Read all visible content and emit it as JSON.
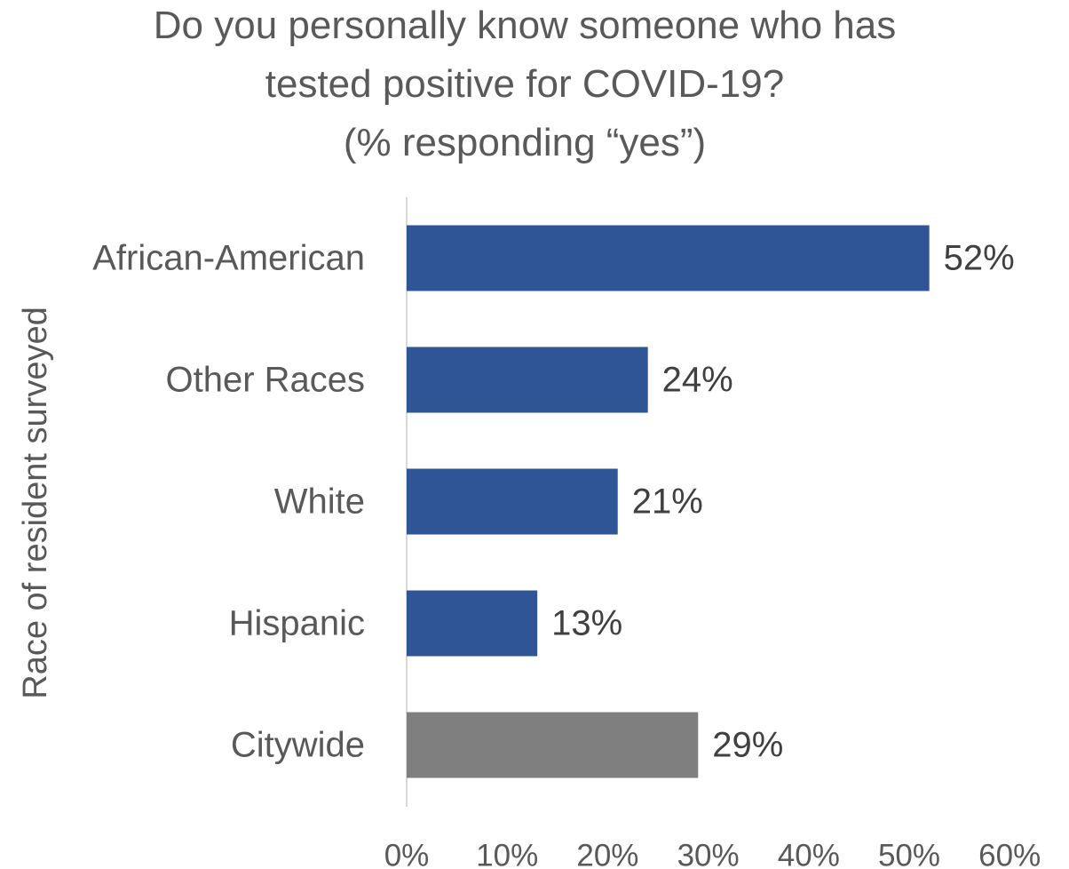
{
  "chart_data": {
    "type": "bar",
    "orientation": "horizontal",
    "title_lines": [
      "Do you personally know someone who has",
      "tested positive for COVID-19?",
      "(% responding “yes”)"
    ],
    "ylabel": "Race of resident surveyed",
    "xlabel": "",
    "categories": [
      "African-American",
      "Other Races",
      "White",
      "Hispanic",
      "Citywide"
    ],
    "values": [
      52,
      24,
      21,
      13,
      29
    ],
    "data_labels": [
      "52%",
      "24%",
      "21%",
      "13%",
      "29%"
    ],
    "bar_colors": [
      "#2f5597",
      "#2f5597",
      "#2f5597",
      "#2f5597",
      "#7f7f7f"
    ],
    "xlim": [
      0,
      60
    ],
    "x_ticks": [
      0,
      10,
      20,
      30,
      40,
      50,
      60
    ],
    "x_tick_labels": [
      "0%",
      "10%",
      "20%",
      "30%",
      "40%",
      "50%",
      "60%"
    ],
    "grid": false,
    "legend": "none",
    "text_color": "#595959",
    "label_color": "#404040",
    "axis_color": "#d9d9d9"
  }
}
